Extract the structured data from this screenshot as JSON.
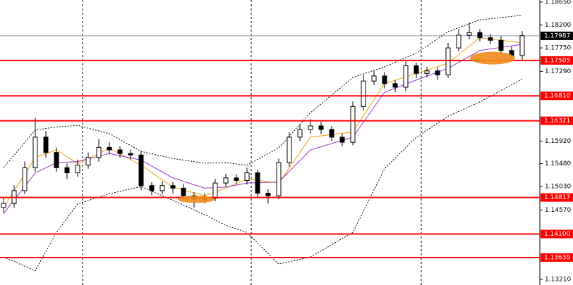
{
  "chart_data": {
    "type": "candlestick",
    "ylim": [
      1.131,
      1.1869
    ],
    "yticks": [
      {
        "value": 1.1865,
        "label": "1.18650"
      },
      {
        "value": 1.182,
        "label": "1.18200"
      },
      {
        "value": 1.1775,
        "label": "1.17750"
      },
      {
        "value": 1.1729,
        "label": "1.17290"
      },
      {
        "value": 1.1592,
        "label": "1.15920"
      },
      {
        "value": 1.1548,
        "label": "1.15480"
      },
      {
        "value": 1.1503,
        "label": "1.15030"
      },
      {
        "value": 1.1457,
        "label": "1.14570"
      },
      {
        "value": 1.1321,
        "label": "1.13210"
      }
    ],
    "levels": [
      {
        "value": 1.17505,
        "label": "1.17505"
      },
      {
        "value": 1.1681,
        "label": "1.16810"
      },
      {
        "value": 1.16321,
        "label": "1.16321"
      },
      {
        "value": 1.14817,
        "label": "1.14817"
      },
      {
        "value": 1.141,
        "label": "1.14100"
      },
      {
        "value": 1.13639,
        "label": "1.13639"
      }
    ],
    "level_color": "#ff0000",
    "last_price": {
      "value": 1.17987,
      "label": "1.17987"
    },
    "up_color": "#ffffff",
    "down_color": "#000000",
    "open": [
      1.1462,
      1.147,
      1.1495,
      1.154,
      1.16,
      1.157,
      1.154,
      1.153,
      1.1545,
      1.156,
      1.158,
      1.1575,
      1.1568,
      1.1565,
      1.1505,
      1.1495,
      1.1505,
      1.15,
      1.1485,
      1.1478,
      1.148,
      1.151,
      1.152,
      1.1515,
      1.153,
      1.149,
      1.1485,
      1.155,
      1.16,
      1.1615,
      1.1622,
      1.1615,
      1.16,
      1.159,
      1.166,
      1.171,
      1.172,
      1.1705,
      1.1698,
      1.174,
      1.1725,
      1.173,
      1.1722,
      1.1775,
      1.18,
      1.1805,
      1.1795,
      1.179,
      1.177,
      1.176
    ],
    "high": [
      1.148,
      1.1505,
      1.1552,
      1.1638,
      1.1612,
      1.158,
      1.1548,
      1.1556,
      1.157,
      1.1596,
      1.159,
      1.1582,
      1.1576,
      1.1572,
      1.1512,
      1.1514,
      1.1512,
      1.1508,
      1.1492,
      1.149,
      1.1518,
      1.1528,
      1.1527,
      1.154,
      1.1536,
      1.1498,
      1.1558,
      1.161,
      1.1625,
      1.1635,
      1.163,
      1.1622,
      1.1607,
      1.167,
      1.1722,
      1.173,
      1.1728,
      1.1712,
      1.1748,
      1.1746,
      1.1738,
      1.1737,
      1.1785,
      1.1812,
      1.1825,
      1.1812,
      1.1803,
      1.1798,
      1.1778,
      1.1808
    ],
    "low": [
      1.1452,
      1.1462,
      1.1488,
      1.1532,
      1.156,
      1.1532,
      1.1518,
      1.1522,
      1.1538,
      1.1552,
      1.1566,
      1.156,
      1.1556,
      1.1496,
      1.1486,
      1.1488,
      1.149,
      1.1476,
      1.1462,
      1.147,
      1.1474,
      1.1503,
      1.1508,
      1.1507,
      1.148,
      1.147,
      1.1478,
      1.1542,
      1.1592,
      1.1607,
      1.1606,
      1.1592,
      1.1582,
      1.1584,
      1.1652,
      1.1702,
      1.1696,
      1.1688,
      1.169,
      1.1716,
      1.1718,
      1.1712,
      1.1716,
      1.1768,
      1.1792,
      1.1788,
      1.1782,
      1.1762,
      1.1748,
      1.1752
    ],
    "close": [
      1.147,
      1.1495,
      1.154,
      1.16,
      1.157,
      1.154,
      1.153,
      1.1545,
      1.156,
      1.158,
      1.1575,
      1.1568,
      1.1565,
      1.1505,
      1.1495,
      1.1505,
      1.15,
      1.1485,
      1.1478,
      1.148,
      1.151,
      1.152,
      1.1515,
      1.153,
      1.149,
      1.1485,
      1.155,
      1.16,
      1.1615,
      1.1622,
      1.1615,
      1.16,
      1.159,
      1.166,
      1.171,
      1.172,
      1.1705,
      1.1698,
      1.174,
      1.1725,
      1.173,
      1.1722,
      1.1775,
      1.18,
      1.1805,
      1.1795,
      1.179,
      1.177,
      1.176,
      1.1799
    ],
    "series": [
      {
        "color": "#000000",
        "dashed": true,
        "x": [
          0,
          3,
          5,
          7,
          10,
          13,
          16,
          19,
          21,
          23,
          26,
          29,
          33,
          36,
          39,
          42,
          45,
          49
        ],
        "values": [
          1.154,
          1.1614,
          1.162,
          1.1623,
          1.1607,
          1.1572,
          1.1558,
          1.1549,
          1.155,
          1.1545,
          1.1579,
          1.1648,
          1.1717,
          1.1738,
          1.1765,
          1.1807,
          1.183,
          1.1839
        ]
      },
      {
        "color": "#000000",
        "dashed": true,
        "x": [
          0,
          3,
          5,
          7,
          10,
          13,
          16,
          19,
          21,
          23,
          26,
          29,
          33,
          36,
          39,
          42,
          45,
          49
        ],
        "values": [
          1.1365,
          1.1338,
          1.1413,
          1.1469,
          1.1489,
          1.1503,
          1.1476,
          1.1448,
          1.1427,
          1.1413,
          1.1351,
          1.1365,
          1.1413,
          1.1538,
          1.16,
          1.1641,
          1.1669,
          1.1714
        ]
      },
      {
        "color": "#f0a000",
        "dashed": false,
        "x": [
          0,
          3,
          5,
          7,
          10,
          13,
          16,
          19,
          21,
          23,
          26,
          29,
          33,
          36,
          39,
          42,
          45,
          49
        ],
        "values": [
          1.1462,
          1.156,
          1.1575,
          1.1548,
          1.1578,
          1.1545,
          1.1502,
          1.1485,
          1.15,
          1.1518,
          1.151,
          1.16,
          1.161,
          1.1705,
          1.1725,
          1.1745,
          1.1795,
          1.1785
        ]
      },
      {
        "color": "#9933cc",
        "dashed": false,
        "x": [
          0,
          3,
          5,
          7,
          10,
          13,
          16,
          19,
          21,
          23,
          26,
          29,
          33,
          36,
          39,
          42,
          45,
          49
        ],
        "values": [
          1.145,
          1.153,
          1.155,
          1.1552,
          1.1568,
          1.1555,
          1.152,
          1.15,
          1.1502,
          1.151,
          1.1512,
          1.1575,
          1.16,
          1.1688,
          1.1712,
          1.1735,
          1.177,
          1.1782
        ]
      }
    ]
  }
}
